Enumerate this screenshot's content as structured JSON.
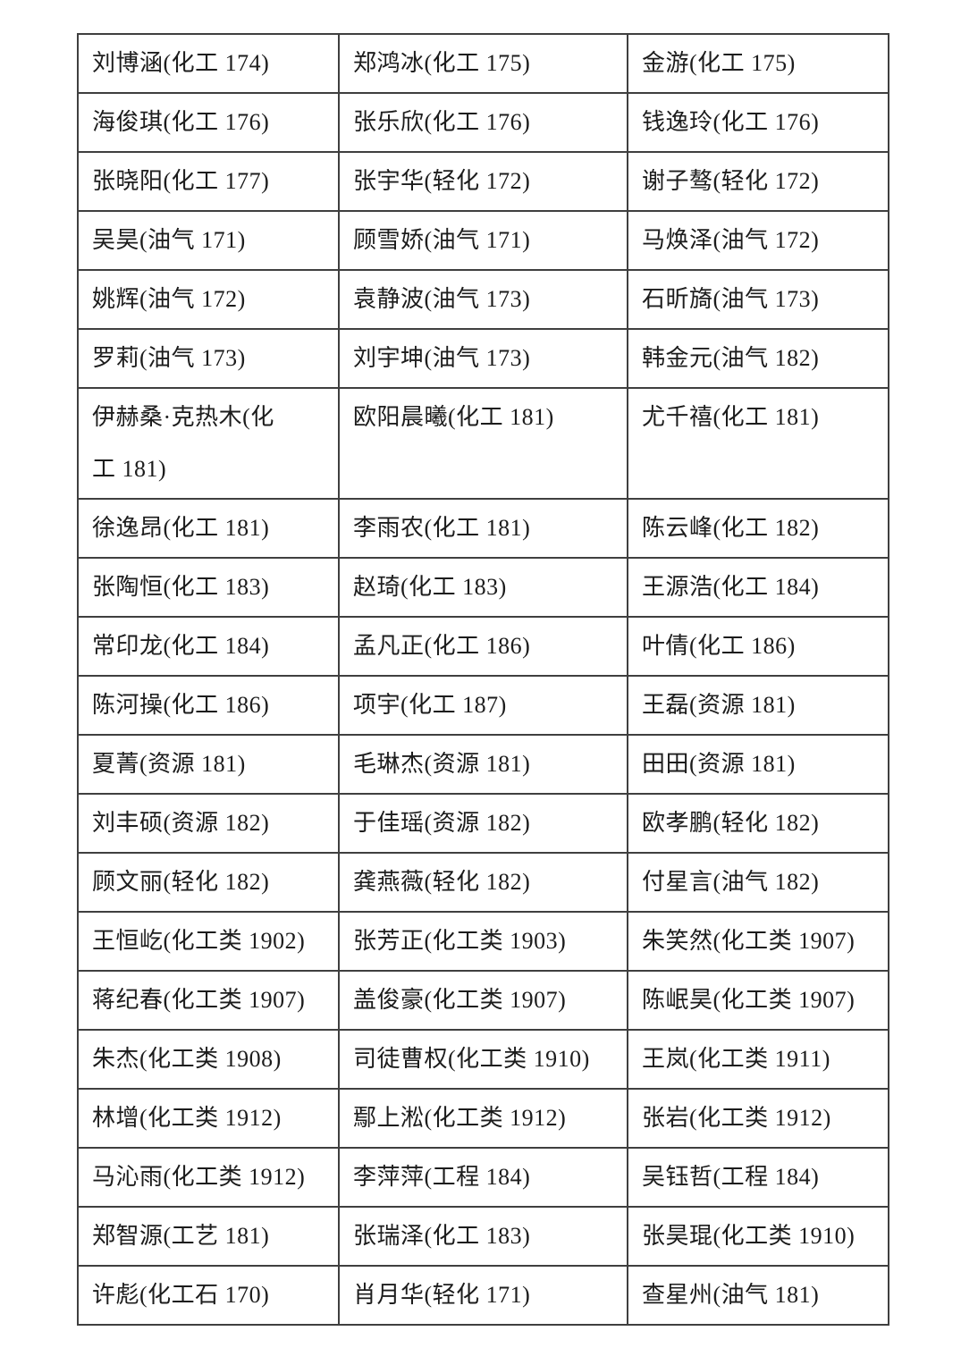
{
  "page": {
    "background_color": "#ffffff"
  },
  "table": {
    "name": "student-roster",
    "border_color": "#3f3f3f",
    "text_color": "#1c1c1c",
    "columns": 3,
    "rows": [
      [
        "刘博涵(化工 174)",
        "郑鸿冰(化工 175)",
        "金游(化工 175)"
      ],
      [
        "海俊琪(化工 176)",
        "张乐欣(化工 176)",
        "钱逸玲(化工 176)"
      ],
      [
        "张晓阳(化工 177)",
        "张宇华(轻化 172)",
        "谢子骜(轻化 172)"
      ],
      [
        "吴昊(油气 171)",
        "顾雪娇(油气 171)",
        "马焕泽(油气 172)"
      ],
      [
        "姚辉(油气 172)",
        "袁静波(油气 173)",
        "石昕旖(油气 173)"
      ],
      [
        "罗莉(油气 173)",
        "刘宇坤(油气 173)",
        "韩金元(油气 182)"
      ],
      [
        "伊赫桑·克热木(化\n工 181)",
        "欧阳晨曦(化工 181)",
        "尤千禧(化工 181)"
      ],
      [
        "徐逸昂(化工 181)",
        "李雨农(化工 181)",
        "陈云峰(化工 182)"
      ],
      [
        "张陶恒(化工 183)",
        "赵琦(化工 183)",
        "王源浩(化工 184)"
      ],
      [
        "常印龙(化工 184)",
        "孟凡正(化工 186)",
        "叶倩(化工 186)"
      ],
      [
        "陈河操(化工 186)",
        "项宇(化工 187)",
        "王磊(资源 181)"
      ],
      [
        "夏菁(资源 181)",
        "毛琳杰(资源 181)",
        "田田(资源 181)"
      ],
      [
        "刘丰硕(资源 182)",
        "于佳瑶(资源 182)",
        "欧孝鹏(轻化 182)"
      ],
      [
        "顾文丽(轻化 182)",
        "龚燕薇(轻化 182)",
        "付星言(油气 182)"
      ],
      [
        "王恒屹(化工类 1902)",
        "张芳正(化工类 1903)",
        "朱笑然(化工类 1907)"
      ],
      [
        "蒋纪春(化工类 1907)",
        "盖俊豪(化工类 1907)",
        "陈岷昊(化工类 1907)"
      ],
      [
        "朱杰(化工类 1908)",
        "司徒曹权(化工类 1910)",
        "王岚(化工类 1911)"
      ],
      [
        "林增(化工类 1912)",
        "鄢上淞(化工类 1912)",
        "张岩(化工类 1912)"
      ],
      [
        "马沁雨(化工类 1912)",
        "李萍萍(工程 184)",
        "吴钰哲(工程 184)"
      ],
      [
        "郑智源(工艺 181)",
        "张瑞泽(化工 183)",
        "张昊琨(化工类 1910)"
      ],
      [
        "许彪(化工石 170)",
        "肖月华(轻化 171)",
        "查星州(油气 181)"
      ]
    ]
  }
}
